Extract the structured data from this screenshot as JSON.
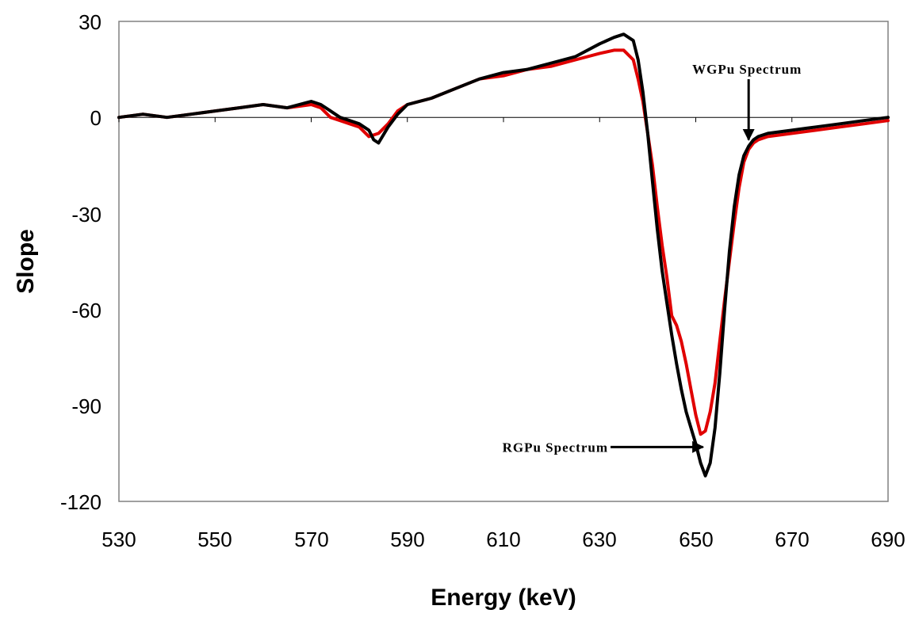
{
  "chart_data": {
    "type": "line",
    "xlabel": "Energy (keV)",
    "ylabel": "Slope",
    "xlim": [
      530,
      690
    ],
    "ylim": [
      -120,
      30
    ],
    "x_ticks": [
      "530",
      "550",
      "570",
      "590",
      "610",
      "630",
      "650",
      "670",
      "690"
    ],
    "y_ticks": [
      "30",
      "0",
      "-30",
      "-60",
      "-90",
      "-120"
    ],
    "grid": false,
    "legend": "none",
    "series": [
      {
        "color": "#e00000",
        "x": [
          530,
          535,
          540,
          545,
          550,
          555,
          560,
          565,
          570,
          572,
          574,
          576,
          578,
          580,
          582,
          584,
          586,
          588,
          590,
          595,
          600,
          605,
          610,
          615,
          620,
          625,
          630,
          633,
          635,
          637,
          638,
          639,
          640,
          641,
          642,
          643,
          644,
          645,
          646,
          647,
          648,
          649,
          650,
          651,
          652,
          653,
          654,
          655,
          656,
          657,
          658,
          659,
          660,
          661,
          662,
          663,
          665,
          670,
          675,
          680,
          685,
          690
        ],
        "y": [
          0,
          1,
          0,
          1,
          2,
          3,
          4,
          3,
          4,
          3,
          0,
          -1,
          -2,
          -3,
          -6,
          -5,
          -2,
          2,
          4,
          6,
          9,
          12,
          13,
          15,
          16,
          18,
          20,
          21,
          21,
          18,
          12,
          5,
          -5,
          -15,
          -28,
          -40,
          -50,
          -62,
          -65,
          -70,
          -77,
          -85,
          -93,
          -99,
          -98,
          -92,
          -83,
          -70,
          -57,
          -45,
          -33,
          -22,
          -14,
          -10,
          -8,
          -7,
          -6,
          -5,
          -4,
          -3,
          -2,
          -1
        ]
      },
      {
        "color": "#000000",
        "x": [
          530,
          535,
          540,
          545,
          550,
          555,
          560,
          565,
          570,
          572,
          574,
          576,
          578,
          580,
          582,
          583,
          584,
          586,
          588,
          590,
          595,
          600,
          605,
          610,
          615,
          620,
          625,
          630,
          633,
          635,
          637,
          638,
          639,
          640,
          641,
          642,
          643,
          644,
          645,
          646,
          647,
          648,
          649,
          650,
          651,
          652,
          653,
          654,
          655,
          656,
          657,
          658,
          659,
          660,
          661,
          662,
          663,
          665,
          670,
          675,
          680,
          685,
          690
        ],
        "y": [
          0,
          1,
          0,
          1,
          2,
          3,
          4,
          3,
          5,
          4,
          2,
          0,
          -1,
          -2,
          -4,
          -7,
          -8,
          -3,
          1,
          4,
          6,
          9,
          12,
          14,
          15,
          17,
          19,
          23,
          25,
          26,
          24,
          18,
          8,
          -5,
          -20,
          -35,
          -48,
          -58,
          -68,
          -77,
          -85,
          -92,
          -97,
          -102,
          -108,
          -112,
          -108,
          -97,
          -80,
          -60,
          -42,
          -28,
          -18,
          -12,
          -9,
          -7,
          -6,
          -5,
          -4,
          -3,
          -2,
          -1,
          0
        ]
      }
    ],
    "annotations": [
      {
        "text": "WGPu Spectrum",
        "target_x": 661,
        "target_y": -7
      },
      {
        "text": "RGPu Spectrum",
        "target_x": 651.5,
        "target_y": -103
      }
    ]
  }
}
